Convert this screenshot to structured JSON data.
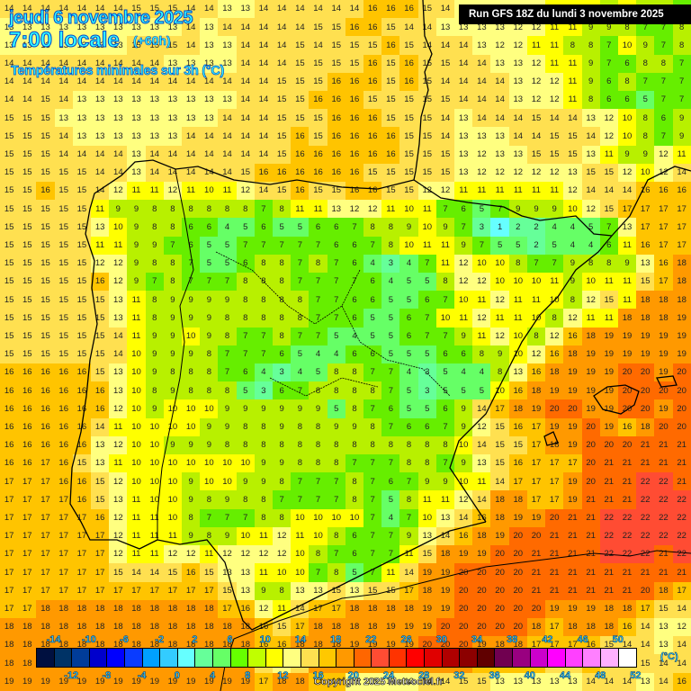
{
  "header": {
    "date": "jeudi 6 novembre 2025",
    "time": "7:00 locale",
    "lead": "(+60h)",
    "parameter": "Températures minimales sur 3h (°C)",
    "run": "Run GFS 18Z du lundi 3 novembre 2025"
  },
  "legend": {
    "unit": "(°C)",
    "top_ticks": [
      "-14",
      "-10",
      "-6",
      "-2",
      "2",
      "6",
      "10",
      "14",
      "18",
      "22",
      "26",
      "30",
      "34",
      "38",
      "42",
      "46",
      "50"
    ],
    "bottom_ticks": [
      "-12",
      "-8",
      "-4",
      "0",
      "4",
      "8",
      "12",
      "16",
      "20",
      "24",
      "28",
      "32",
      "36",
      "40",
      "44",
      "48",
      "52"
    ],
    "colors": [
      "#001040",
      "#003366",
      "#003c99",
      "#0000cc",
      "#0000ff",
      "#0a3cff",
      "#00a0ff",
      "#33ccff",
      "#66ffff",
      "#66ff99",
      "#66ff66",
      "#66ff00",
      "#c0ff00",
      "#ffff00",
      "#ffff80",
      "#ffe050",
      "#ffc800",
      "#ff9900",
      "#ff6600",
      "#ff4c33",
      "#ff3300",
      "#ff0000",
      "#e00000",
      "#b00000",
      "#8c0000",
      "#600000",
      "#700050",
      "#990080",
      "#cc00cc",
      "#ff00ff",
      "#ff40ff",
      "#ff80ff",
      "#ffb0ff",
      "#ffffff"
    ]
  },
  "copyright": "Copyright 2025 Meteociel.fr",
  "map": {
    "region": "Iberian Peninsula",
    "grid_cols": 38,
    "grid_rows": 38,
    "rows": [
      "14 14 14 14 14 14 14 15 15 15 14 14 13 13 14 14 14 14 14 14 16 16 16 15 14 13 13 13 13 12 11 10 10 9 11 9 9 7",
      "13 13 13 13 13 13 13 13 13 13 14 13 14 14 14 14 14 15 15 16 16 15 14 14 13 13 13 13 12 12 11 11 9 9 8 7 7 8",
      "13 13 13 13 13 13 13 15 15 15 14 13 13 14 14 14 15 14 15 15 15 16 15 14 14 14 13 12 12 11 11 8 8 7 10 9 7 8",
      "14 14 14 14 14 14 14 14 14 13 13 13 13 14 14 14 15 15 15 15 16 15 16 15 15 14 14 13 13 12 11 11 9 7 6 8 8 7",
      "14 14 14 14 14 14 14 14 14 14 14 14 14 14 14 15 15 15 16 16 16 15 16 15 14 14 14 14 13 12 12 11 9 6 8 7 7 7",
      "14 14 15 14 13 13 13 13 13 13 13 13 13 14 14 15 15 16 16 16 15 15 15 15 15 14 14 14 13 12 12 11 8 6 6 5 7 7",
      "15 15 15 13 13 13 13 13 13 13 13 13 14 14 14 15 15 15 16 16 16 15 15 15 14 13 14 14 14 15 14 14 13 12 10 8 6 9",
      "15 15 15 14 13 13 13 13 13 13 14 14 14 14 14 15 16 15 16 16 16 16 15 15 14 13 13 13 14 14 15 15 14 12 10 8 7 9",
      "15 15 15 14 14 14 14 13 14 14 14 14 14 14 14 15 16 16 16 16 16 16 15 15 15 13 12 13 13 15 15 15 13 11 9 9 12 11",
      "15 15 15 15 15 14 14 13 14 14 14 14 14 15 16 16 16 16 16 16 15 15 15 15 15 13 12 12 12 12 12 13 15 15 12 10 12 14",
      "15 15 16 15 15 14 12 11 11 12 11 10 11 12 14 15 16 15 15 16 16 15 15 12 12 11 11 11 11 11 11 12 14 14 14 16 16 16",
      "15 15 15 15 15 11 9 9 8 8 8 8 8 8 7 8 11 11 13 12 12 11 10 11 7 6 5 7 9 9 9 10 12 15 17 17 17 17",
      "15 15 15 15 15 13 10 9 8 8 6 6 4 5 6 5 5 6 6 7 8 8 9 10 9 7 3 1 2 2 4 4 5 7 13 17 17 17",
      "15 15 15 15 15 11 11 9 9 7 6 5 5 7 7 7 7 7 6 6 7 8 10 11 11 9 7 5 5 2 5 4 4 6 11 16 17 17",
      "15 15 15 15 15 12 12 9 8 8 7 5 5 6 8 8 7 8 7 6 4 3 4 7 11 12 10 10 8 7 7 9 8 8 9 13 16 18",
      "15 15 15 15 15 16 12 9 7 8 7 7 7 8 8 8 7 7 7 7 6 4 5 5 8 12 12 10 10 10 11 9 10 11 11 15 17 18",
      "15 15 15 15 15 15 13 11 8 9 9 9 9 8 8 8 8 7 7 6 6 5 5 6 7 10 11 12 11 11 10 8 12 15 11 18 18 18",
      "15 15 15 15 15 15 13 11 8 9 9 9 8 8 8 8 8 7 7 6 5 5 6 7 10 11 12 11 11 10 8 12 11 11 18 18 18 19",
      "15 15 15 15 15 15 14 11 9 9 10 9 8 7 7 8 7 7 5 4 5 5 6 7 7 9 11 12 10 8 12 16 18 19 19 19 19 19",
      "15 15 15 15 15 15 14 10 9 9 9 8 7 7 7 6 5 4 4 6 6 5 5 5 6 6 8 9 10 12 16 18 19 19 19 19 19 19",
      "16 16 16 16 16 15 13 10 9 8 8 8 7 6 4 3 4 5 8 8 7 7 4 3 5 4 4 8 13 16 18 19 19 19 20 20 19 20",
      "16 16 16 16 16 16 13 10 8 9 8 8 8 5 3 6 7 8 8 8 8 7 5 3 5 5 5 10 16 18 19 19 19 19 20 20 20 20",
      "16 16 16 16 16 16 12 10 9 10 10 10 9 9 9 9 9 9 5 8 7 6 5 5 6 9 14 17 18 19 20 20 19 19 20 20 19 20",
      "16 16 16 16 16 14 11 10 10 10 10 9 9 8 8 9 8 8 9 9 8 7 6 6 7 9 12 15 16 17 19 19 20 19 16 18 20 20",
      "16 16 16 16 16 13 12 10 10 9 9 9 8 8 8 8 8 8 8 8 8 8 8 8 8 10 14 15 15 17 18 19 20 20 20 21 21 21",
      "16 16 17 16 15 13 11 10 10 10 10 10 10 10 9 9 8 8 8 7 7 7 8 8 7 9 13 15 16 17 17 17 20 21 21 21 21 21",
      "17 17 17 16 16 15 12 10 10 10 9 10 10 9 9 8 7 7 7 8 7 6 7 9 9 10 11 14 17 17 17 19 20 21 21 22 22 21",
      "17 17 17 17 16 15 13 11 10 10 9 8 9 8 8 7 7 7 7 8 7 5 8 11 11 12 14 18 18 17 17 19 21 21 21 22 22 22",
      "17 17 17 17 17 16 12 11 11 10 8 7 7 7 8 8 10 10 10 10 7 4 7 10 13 14 16 18 19 19 20 21 21 22 22 22 22 22",
      "17 17 17 17 17 17 12 11 11 11 9 8 9 10 11 12 11 10 8 6 7 7 9 13 14 16 18 19 20 20 21 21 21 22 22 22 22 22",
      "17 17 17 17 17 17 12 11 11 12 12 11 12 12 12 12 10 8 7 6 7 7 11 15 18 19 19 20 20 21 21 21 21 22 22 22 21 22",
      "17 17 17 17 17 17 15 14 14 15 16 15 13 13 11 10 10 7 8 5 7 11 14 19 19 20 20 20 20 21 21 21 21 21 21 21 21 21",
      "17 17 17 17 17 17 17 17 17 17 17 17 15 13 9 8 13 13 15 13 15 15 17 18 19 20 20 20 20 21 21 21 21 21 21 20 18 17",
      "17 17 18 18 18 18 18 18 18 18 18 18 17 16 12 11 14 17 17 18 18 18 18 19 19 20 20 20 20 20 19 19 19 18 18 17 15 14",
      "18 18 18 18 18 18 18 18 18 18 18 18 18 18 16 15 17 18 18 18 18 19 19 19 20 20 20 20 20 18 17 18 18 18 16 14 13 12",
      "18 18 18 18 18 18 18 18 18 18 18 18 18 18 16 16 18 18 18 19 19 19 19 20 20 20 19 18 18 17 17 17 16 15 14 14 13 14",
      "18 18 18 18 18 18 18 18 18 19 19 18 18 18 14 12 15 18 18 18 19 19 19 19 19 19 17 16 16 16 15 15 16 15 15 15 14 14",
      "19 19 19 19 19 19 19 19 19 19 19 19 19 19 17 18 18 17 16 13 13 13 13 14 14 15 15 13 13 13 13 13 14 14 14 13 14 16"
    ]
  }
}
